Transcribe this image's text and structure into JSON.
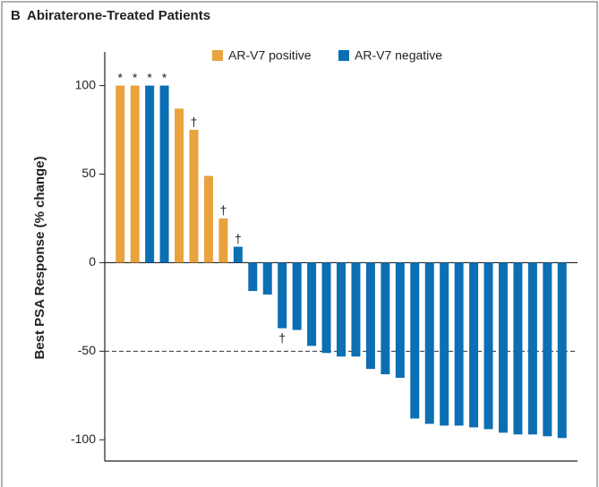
{
  "chart_data": {
    "type": "bar",
    "panel_label": "B",
    "title": "Abiraterone-Treated Patients",
    "y_label": "Best PSA Response (% change)",
    "series": [
      {
        "name": "AR-V7 positive",
        "color": "#e8a33d",
        "values": [
          100,
          100,
          null,
          null,
          87,
          75,
          49,
          25,
          null,
          null,
          null,
          null,
          null,
          null,
          null,
          null,
          null,
          null,
          null,
          null,
          null,
          null,
          null,
          null,
          null,
          null,
          null,
          null,
          null,
          null,
          null
        ]
      },
      {
        "name": "AR-V7 negative",
        "color": "#0c6fb3",
        "values": [
          null,
          null,
          100,
          100,
          null,
          null,
          null,
          null,
          9,
          -16,
          -18,
          -37,
          -38,
          -47,
          -51,
          -53,
          -53,
          -60,
          -63,
          -65,
          -88,
          -91,
          -92,
          -92,
          -93,
          -94,
          -96,
          -97,
          -97,
          -98,
          -99
        ]
      }
    ],
    "bar_notes": [
      "*",
      "*",
      "*",
      "*",
      null,
      "†",
      null,
      "†",
      "†",
      null,
      null,
      "†",
      null,
      null,
      null,
      null,
      null,
      null,
      null,
      null,
      null,
      null,
      null,
      null,
      null,
      null,
      null,
      null,
      null,
      null,
      null
    ],
    "reference_line": -50,
    "ylim": [
      -112,
      119
    ],
    "yticks": [
      100,
      50,
      0,
      -50,
      -100
    ]
  }
}
